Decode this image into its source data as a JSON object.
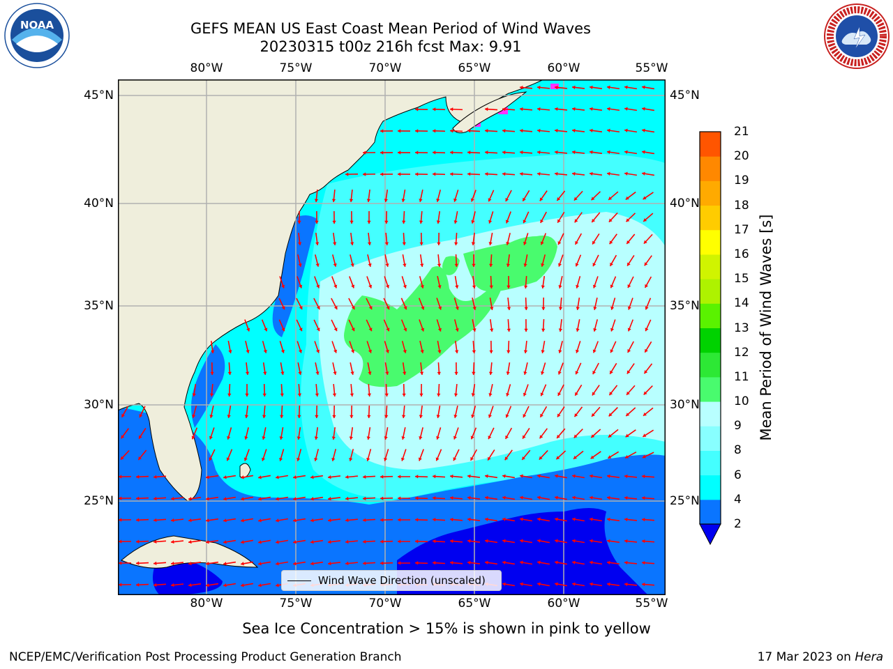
{
  "title": "GEFS MEAN US East Coast Mean Period of Wind Waves",
  "subtitle": "20230315 t00z 216h fcst   Max: 9.91",
  "lon_labels": [
    "80°W",
    "75°W",
    "70°W",
    "65°W",
    "60°W",
    "55°W"
  ],
  "lat_labels": [
    "45°N",
    "40°N",
    "35°N",
    "30°N",
    "25°N"
  ],
  "colorbar": {
    "label": "Mean Period of Wind Waves [s]",
    "ticks": [
      "2",
      "4",
      "6",
      "8",
      "9",
      "10",
      "11",
      "12",
      "13",
      "14",
      "15",
      "16",
      "17",
      "18",
      "19",
      "20",
      "21"
    ],
    "colors": [
      "#0a75ff",
      "#00ffff",
      "#44ffff",
      "#88ffff",
      "#b8ffff",
      "#49fb6e",
      "#2de835",
      "#00d200",
      "#5af200",
      "#aef200",
      "#d0f400",
      "#ffff00",
      "#ffcc00",
      "#ffaa00",
      "#ff8800",
      "#ff5500",
      "#ff2200",
      "#ff0000"
    ]
  },
  "legend": {
    "label": "Wind Wave Direction (unscaled)"
  },
  "footnote": "Sea Ice Concentration > 15% is shown in pink to yellow",
  "footer_left": "NCEP/EMC/Verification Post Processing Product Generation Branch",
  "footer_date": "17 Mar 2023 on",
  "footer_machine": "Hera",
  "logos": {
    "left": "noaa-logo",
    "right": "national-weather-service-logo"
  },
  "colors": {
    "land": "#efeedc",
    "arrow": "#ff0000",
    "grid": "#b0b0b0"
  }
}
